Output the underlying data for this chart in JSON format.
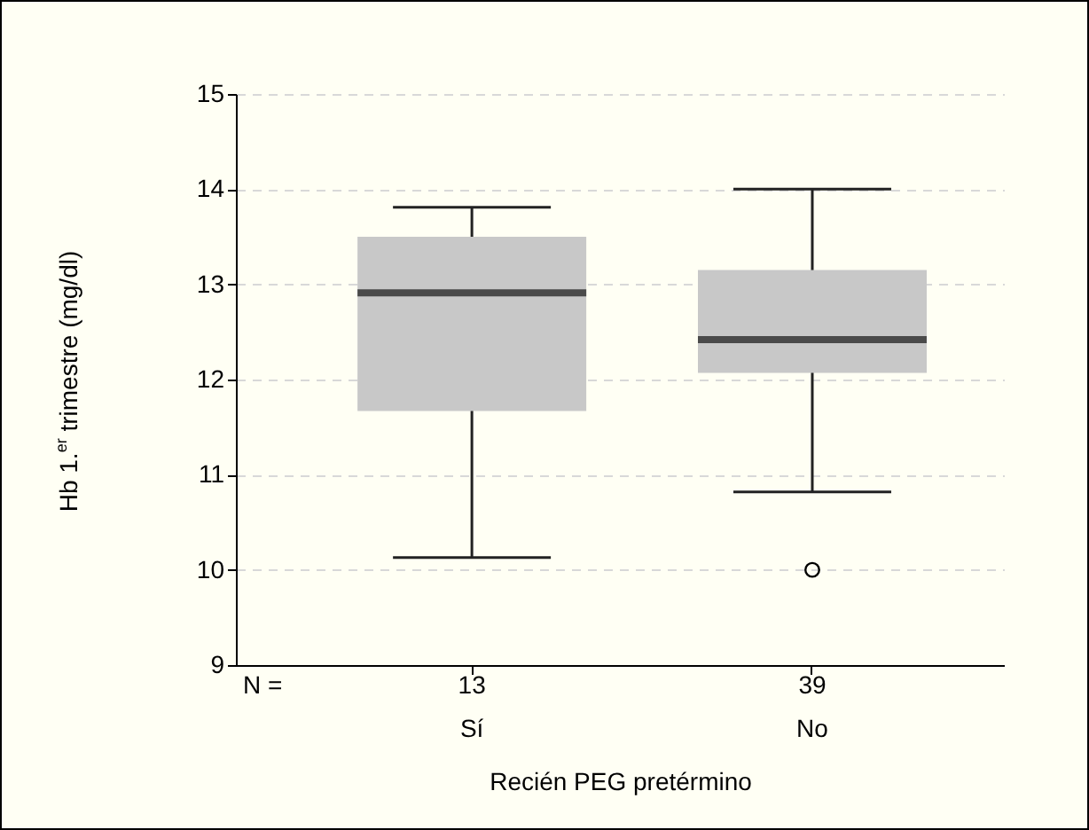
{
  "chart_data": {
    "type": "box",
    "xlabel": "Recién PEG pretérmino",
    "ylabel": "Hb 1.$^{er}$ trimestre (mg/dl)",
    "categories": [
      "Sí",
      "No"
    ],
    "boxes": [
      {
        "low": 10.13,
        "q1": 11.67,
        "median": 12.91,
        "q3": 13.5,
        "high": 13.81
      },
      {
        "low": 10.82,
        "q1": 12.07,
        "median": 12.42,
        "q3": 13.15,
        "high": 14.0,
        "outliers": [
          10.0
        ]
      }
    ],
    "color": "#c8c8c8",
    "ylim": [
      9,
      15
    ],
    "yticks": [
      9,
      10,
      11,
      12,
      13,
      14,
      15
    ],
    "grid": "y",
    "annotations": [
      "N =",
      "13",
      "39"
    ]
  }
}
